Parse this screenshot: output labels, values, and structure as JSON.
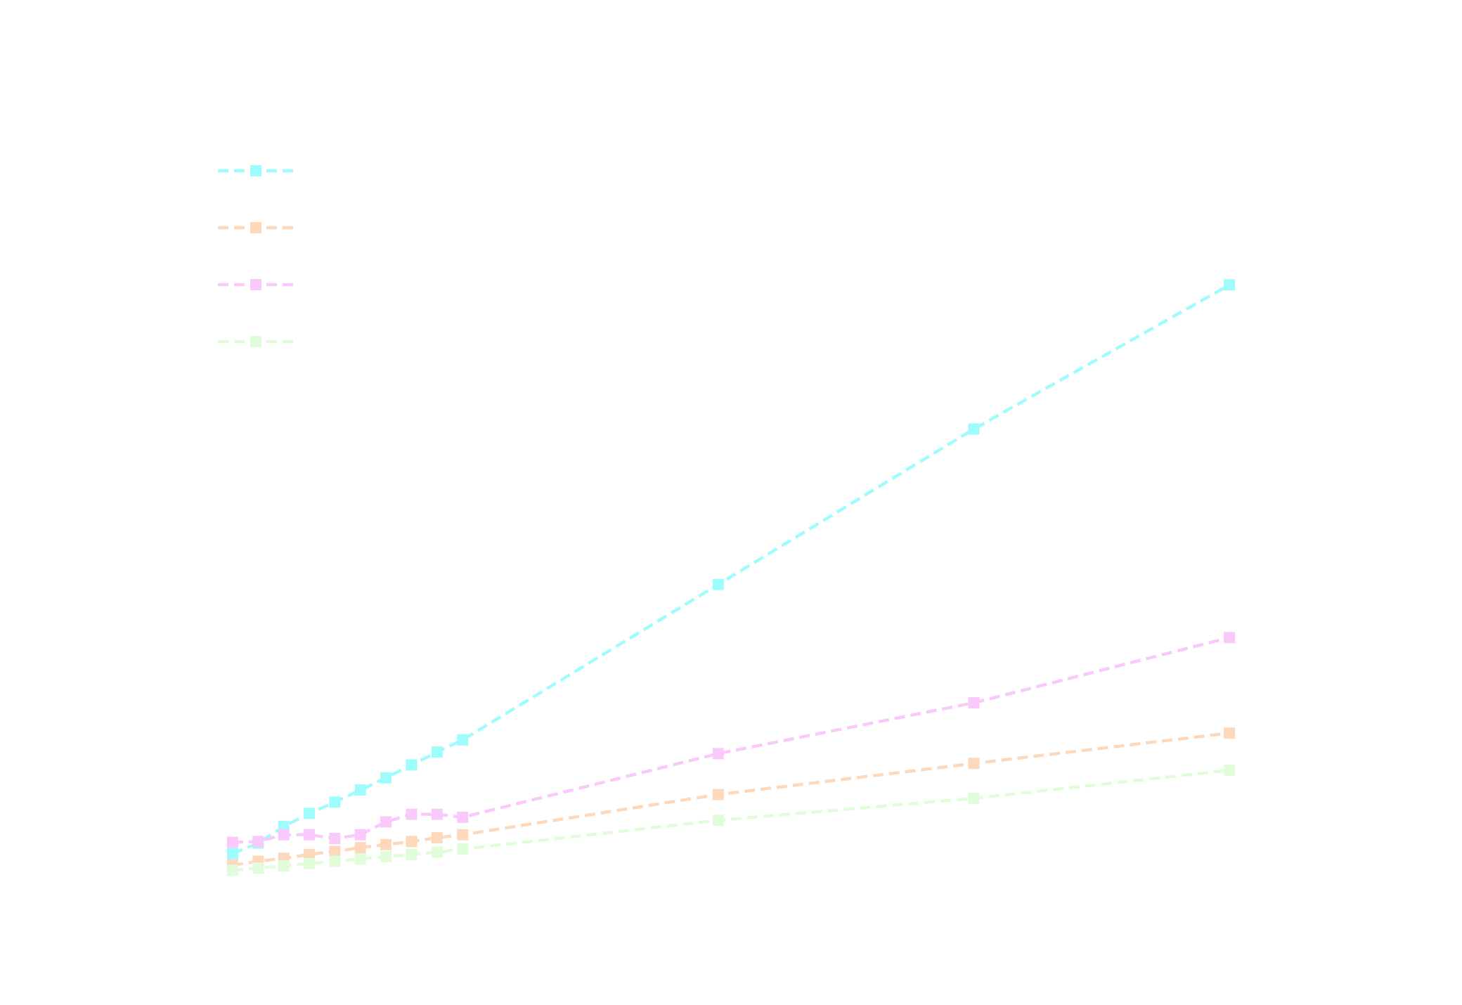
{
  "chart_data": {
    "type": "line",
    "title": "",
    "xlabel": "",
    "ylabel": "",
    "x": [
      0,
      1,
      2,
      3,
      4,
      5,
      6,
      7,
      8,
      9,
      19,
      29,
      39
    ],
    "xlim": [
      -1.95,
      40.95
    ],
    "ylim": [
      -5,
      100
    ],
    "grid": false,
    "legend_position": "upper-left",
    "marker": "square",
    "line_style": "dashed",
    "series": [
      {
        "color": "#9ffcfc",
        "values": [
          1.7,
          3.1,
          5.3,
          7.0,
          8.5,
          10.1,
          11.7,
          13.4,
          15.1,
          16.7,
          37.2,
          57.7,
          76.7
        ]
      },
      {
        "color": "#fdd8bb",
        "values": [
          0.2,
          0.7,
          1.1,
          1.6,
          2.0,
          2.5,
          2.9,
          3.3,
          3.8,
          4.2,
          9.5,
          13.6,
          17.6
        ]
      },
      {
        "color": "#f9c9fb",
        "values": [
          3.2,
          3.3,
          4.2,
          4.2,
          3.7,
          4.2,
          5.9,
          6.9,
          6.9,
          6.5,
          14.9,
          21.6,
          30.2
        ]
      },
      {
        "color": "#e1fcda",
        "values": [
          -0.5,
          -0.2,
          0.1,
          0.4,
          0.7,
          1.0,
          1.3,
          1.6,
          1.9,
          2.3,
          6.1,
          9.0,
          12.7
        ]
      }
    ]
  }
}
